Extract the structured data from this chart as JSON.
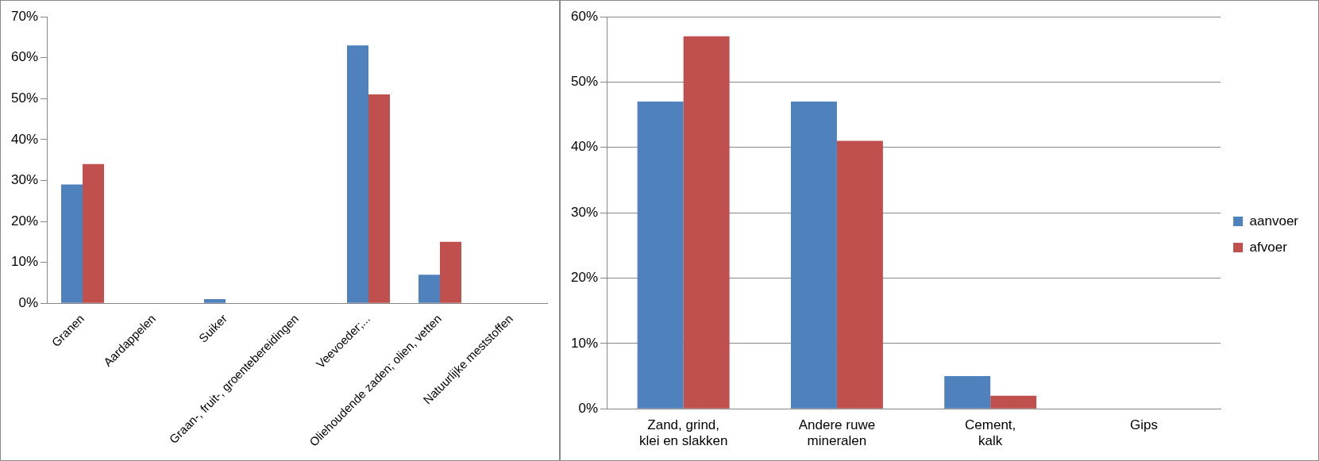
{
  "chart_data": [
    {
      "type": "bar",
      "categories": [
        "Granen",
        "Aardappelen",
        "Suiker",
        "Graan-, fruit-, groentebereidingen",
        "Veevoeder;...",
        "Oliehoudende zaden; olien, vetten",
        "Natuurlijke meststoffen"
      ],
      "series": [
        {
          "color": "#4f81bd",
          "values": [
            29,
            0,
            1,
            0,
            63,
            7,
            0
          ]
        },
        {
          "color": "#c0504d",
          "values": [
            34,
            0,
            0,
            0,
            51,
            15,
            0
          ]
        }
      ],
      "ylim": [
        0,
        70
      ],
      "yticks": [
        {
          "value": 0,
          "label": "0%"
        },
        {
          "value": 10,
          "label": "10%"
        },
        {
          "value": 20,
          "label": "20%"
        },
        {
          "value": 30,
          "label": "30%"
        },
        {
          "value": 40,
          "label": "40%"
        },
        {
          "value": 50,
          "label": "50%"
        },
        {
          "value": 60,
          "label": "60%"
        },
        {
          "value": 70,
          "label": "70%"
        }
      ],
      "grid": false,
      "legend": false
    },
    {
      "type": "bar",
      "categories": [
        "Zand, grind, klei en slakken",
        "Andere ruwe mineralen",
        "Cement, kalk",
        "Gips"
      ],
      "series": [
        {
          "name": "aanvoer",
          "color": "#4f81bd",
          "values": [
            47,
            47,
            5,
            0
          ]
        },
        {
          "name": "afvoer",
          "color": "#c0504d",
          "values": [
            57,
            41,
            2,
            0
          ]
        }
      ],
      "ylim": [
        0,
        60
      ],
      "yticks": [
        {
          "value": 0,
          "label": "0%"
        },
        {
          "value": 10,
          "label": "10%"
        },
        {
          "value": 20,
          "label": "20%"
        },
        {
          "value": 30,
          "label": "30%"
        },
        {
          "value": 40,
          "label": "40%"
        },
        {
          "value": 50,
          "label": "50%"
        },
        {
          "value": 60,
          "label": "60%"
        }
      ],
      "grid": "y",
      "legend": "right"
    }
  ]
}
